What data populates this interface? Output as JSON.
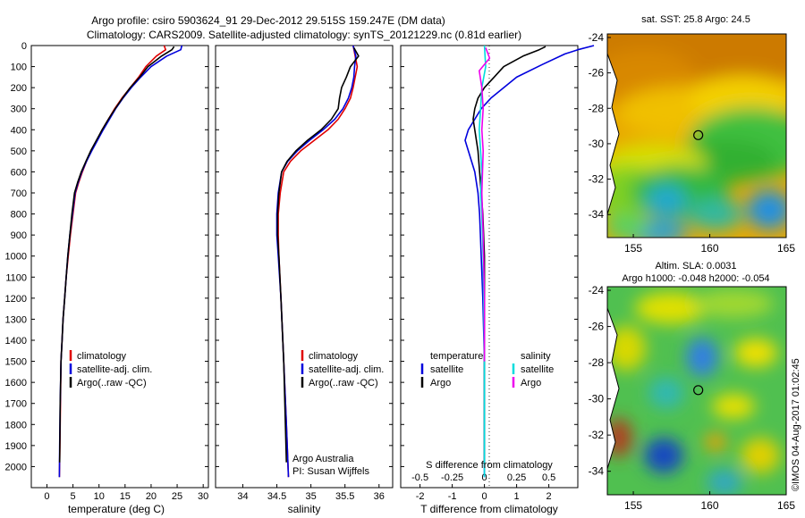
{
  "header": {
    "line1": "Argo profile: csiro 5903624_91 29-Dec-2012 29.515S 159.247E (DM data)",
    "line2": "Climatology: CARS2009. Satellite-adjusted climatology: synTS_20121229.nc (0.81d earlier)"
  },
  "colors": {
    "climatology": "#e00000",
    "satellite": "#0000dd",
    "argo": "#000000",
    "sal_satellite": "#00dddd",
    "sal_argo": "#ee00ee"
  },
  "map_top": {
    "title": "sat. SST: 25.8 Argo: 24.5"
  },
  "map_bottom": {
    "title1": "Altim. SLA: 0.0031",
    "title2": "Argo h1000: -0.048 h2000: -0.054"
  },
  "footer_stamp": "©IMOS 04-Aug-2017 01:02:45",
  "chart_data": [
    {
      "type": "line",
      "title": "",
      "xlabel": "temperature (deg C)",
      "ylabel": "",
      "xlim": [
        -3,
        31
      ],
      "ylim": [
        2100,
        0
      ],
      "xticks": [
        "0",
        "5",
        "10",
        "15",
        "20",
        "25",
        "30"
      ],
      "yticks": [
        "0",
        "100",
        "200",
        "300",
        "400",
        "500",
        "600",
        "700",
        "800",
        "900",
        "1000",
        "1100",
        "1200",
        "1300",
        "1400",
        "1500",
        "1600",
        "1700",
        "1800",
        "1900",
        "2000"
      ],
      "legend": [
        "climatology",
        "satellite-adj. clim.",
        "Argo(..raw -QC)"
      ],
      "legend_position": "lower-center",
      "series": [
        {
          "name": "climatology",
          "color": "#e00000",
          "x": [
            22.5,
            22.8,
            21.0,
            19.0,
            17.6,
            16.0,
            14.4,
            13.0,
            11.8,
            10.6,
            9.6,
            8.5,
            7.6,
            6.8,
            6.1,
            5.5,
            5.0,
            4.5,
            4.1,
            3.7,
            3.4,
            3.1,
            2.9,
            2.7,
            2.6,
            2.5,
            2.4
          ],
          "y": [
            0,
            20,
            50,
            100,
            150,
            200,
            250,
            300,
            350,
            400,
            450,
            500,
            550,
            600,
            650,
            700,
            800,
            900,
            1000,
            1100,
            1200,
            1300,
            1400,
            1500,
            1700,
            1900,
            2050
          ]
        },
        {
          "name": "satellite-adj. clim.",
          "color": "#0000dd",
          "x": [
            25.9,
            25.7,
            23.0,
            20.0,
            18.0,
            16.2,
            14.6,
            13.2,
            12.0,
            10.8,
            9.7,
            8.6,
            7.6,
            6.7,
            6.0,
            5.4,
            4.9,
            4.4,
            4.0,
            3.7,
            3.4,
            3.1,
            2.9,
            2.7,
            2.55,
            2.45,
            2.4
          ],
          "y": [
            0,
            20,
            50,
            100,
            150,
            200,
            250,
            300,
            350,
            400,
            450,
            500,
            550,
            600,
            650,
            700,
            800,
            900,
            1000,
            1100,
            1200,
            1300,
            1400,
            1500,
            1700,
            1900,
            2050
          ]
        },
        {
          "name": "Argo(..raw -QC)",
          "color": "#000000",
          "x": [
            24.4,
            24.0,
            22.0,
            19.4,
            17.8,
            16.0,
            14.5,
            13.1,
            11.8,
            10.6,
            9.5,
            8.4,
            7.5,
            6.6,
            5.9,
            5.3,
            4.8,
            4.4,
            4.0,
            3.7,
            3.4,
            3.1,
            2.9,
            2.7,
            2.55,
            2.45
          ],
          "y": [
            5,
            20,
            50,
            100,
            150,
            200,
            250,
            300,
            350,
            400,
            450,
            500,
            550,
            600,
            650,
            700,
            800,
            900,
            1000,
            1100,
            1200,
            1300,
            1400,
            1500,
            1700,
            1980
          ]
        }
      ]
    },
    {
      "type": "line",
      "title": "",
      "xlabel": "salinity",
      "ylabel": "",
      "xlim": [
        33.6,
        36.2
      ],
      "ylim": [
        2100,
        0
      ],
      "xticks": [
        "34",
        "34.5",
        "35",
        "35.5",
        "36"
      ],
      "legend": [
        "climatology",
        "satellite-adj. clim.",
        "Argo(..raw -QC)"
      ],
      "legend_position": "lower-center",
      "annotations": [
        "Argo Australia",
        "PI: Susan Wijffels"
      ],
      "series": [
        {
          "name": "climatology",
          "color": "#e00000",
          "x": [
            35.62,
            35.65,
            35.68,
            35.65,
            35.62,
            35.58,
            35.5,
            35.4,
            35.25,
            35.05,
            34.85,
            34.7,
            34.6,
            34.55,
            34.52,
            34.52,
            34.53,
            34.56,
            34.6,
            34.64,
            34.67
          ],
          "y": [
            0,
            50,
            100,
            150,
            200,
            250,
            300,
            350,
            400,
            450,
            500,
            550,
            600,
            700,
            800,
            900,
            1000,
            1200,
            1500,
            1800,
            2050
          ]
        },
        {
          "name": "satellite-adj. clim.",
          "color": "#0000dd",
          "x": [
            35.62,
            35.66,
            35.64,
            35.63,
            35.6,
            35.55,
            35.47,
            35.35,
            35.18,
            34.98,
            34.8,
            34.66,
            34.57,
            34.52,
            34.5,
            34.5,
            34.52,
            34.56,
            34.6,
            34.64,
            34.67
          ],
          "y": [
            0,
            50,
            100,
            150,
            200,
            250,
            300,
            350,
            400,
            450,
            500,
            550,
            600,
            700,
            800,
            900,
            1000,
            1200,
            1500,
            1800,
            2050
          ]
        },
        {
          "name": "Argo(..raw -QC)",
          "color": "#000000",
          "x": [
            35.63,
            35.7,
            35.58,
            35.52,
            35.45,
            35.42,
            35.4,
            35.3,
            35.15,
            34.95,
            34.78,
            34.65,
            34.57,
            34.53,
            34.51,
            34.51,
            34.53,
            34.56,
            34.6,
            34.64
          ],
          "y": [
            10,
            50,
            100,
            150,
            200,
            250,
            300,
            350,
            400,
            450,
            500,
            550,
            600,
            700,
            800,
            900,
            1000,
            1200,
            1500,
            1980
          ]
        }
      ]
    },
    {
      "type": "line",
      "title": "",
      "xlabel": "T difference from climatology",
      "x2label": "S difference from climatology",
      "ylabel": "",
      "xlim": [
        -2.6,
        2.9
      ],
      "x2lim": [
        -0.65,
        0.725
      ],
      "ylim": [
        2100,
        0
      ],
      "xticks": [
        "-2",
        "-1",
        "0",
        "1",
        "2"
      ],
      "x2ticks": [
        "-0.5",
        "-0.25",
        "0",
        "0.25",
        "0.5"
      ],
      "legend_groups": {
        "temperature": [
          "satellite",
          "Argo"
        ],
        "salinity": [
          "satellite",
          "Argo"
        ]
      },
      "legend_position": "lower-center",
      "series": [
        {
          "name": "satellite",
          "group": "temperature",
          "color": "#0000dd",
          "x": [
            3.4,
            2.9,
            2.5,
            1.8,
            1.0,
            0.6,
            0.2,
            -0.1,
            -0.3,
            -0.5,
            -0.6,
            -0.5,
            -0.4,
            -0.3,
            -0.2,
            -0.15,
            -0.1,
            -0.05,
            0.0,
            0.0
          ],
          "y": [
            0,
            20,
            40,
            90,
            150,
            200,
            250,
            300,
            350,
            400,
            450,
            500,
            550,
            600,
            700,
            800,
            1000,
            1200,
            1500,
            2050
          ]
        },
        {
          "name": "Argo",
          "group": "temperature",
          "color": "#000000",
          "x": [
            1.9,
            1.7,
            1.2,
            0.6,
            0.3,
            0.0,
            -0.2,
            -0.3,
            -0.35,
            -0.3,
            -0.25,
            -0.2,
            -0.15,
            -0.1,
            -0.05,
            0.0,
            0.0,
            0.0
          ],
          "y": [
            5,
            20,
            50,
            100,
            150,
            200,
            250,
            300,
            350,
            400,
            450,
            500,
            600,
            700,
            800,
            1000,
            1500,
            1980
          ]
        },
        {
          "name": "satellite",
          "group": "salinity",
          "color": "#00dddd",
          "x": [
            0.0,
            0.01,
            -0.02,
            -0.03,
            -0.04,
            -0.03,
            -0.02,
            -0.03,
            -0.02,
            -0.01,
            0.0,
            0.0,
            0.0
          ],
          "y": [
            0,
            100,
            200,
            300,
            400,
            500,
            600,
            700,
            800,
            1000,
            1500,
            1800,
            2050
          ]
        },
        {
          "name": "Argo",
          "group": "salinity",
          "color": "#ee00ee",
          "x": [
            0.01,
            0.04,
            -0.04,
            -0.02,
            -0.01,
            -0.02,
            -0.01,
            -0.02,
            -0.01,
            0.0,
            0.0
          ],
          "y": [
            10,
            60,
            120,
            200,
            300,
            400,
            500,
            700,
            900,
            1200,
            1500
          ]
        }
      ]
    },
    {
      "type": "heatmap",
      "title": "sat. SST: 25.8 Argo: 24.5",
      "xlim": [
        153.3,
        165
      ],
      "ylim": [
        -35.3,
        -23.8
      ],
      "xticks": [
        "155",
        "160",
        "165"
      ],
      "yticks": [
        "-24",
        "-26",
        "-28",
        "-30",
        "-32",
        "-34"
      ],
      "marker": {
        "lon": 159.247,
        "lat": -29.515
      }
    },
    {
      "type": "heatmap",
      "title": "Altim. SLA: 0.0031",
      "subtitle": "Argo h1000: -0.048 h2000: -0.054",
      "xlim": [
        153.3,
        165
      ],
      "ylim": [
        -35.3,
        -23.8
      ],
      "xticks": [
        "155",
        "160",
        "165"
      ],
      "yticks": [
        "-24",
        "-26",
        "-28",
        "-30",
        "-32",
        "-34"
      ],
      "marker": {
        "lon": 159.247,
        "lat": -29.515
      }
    }
  ]
}
